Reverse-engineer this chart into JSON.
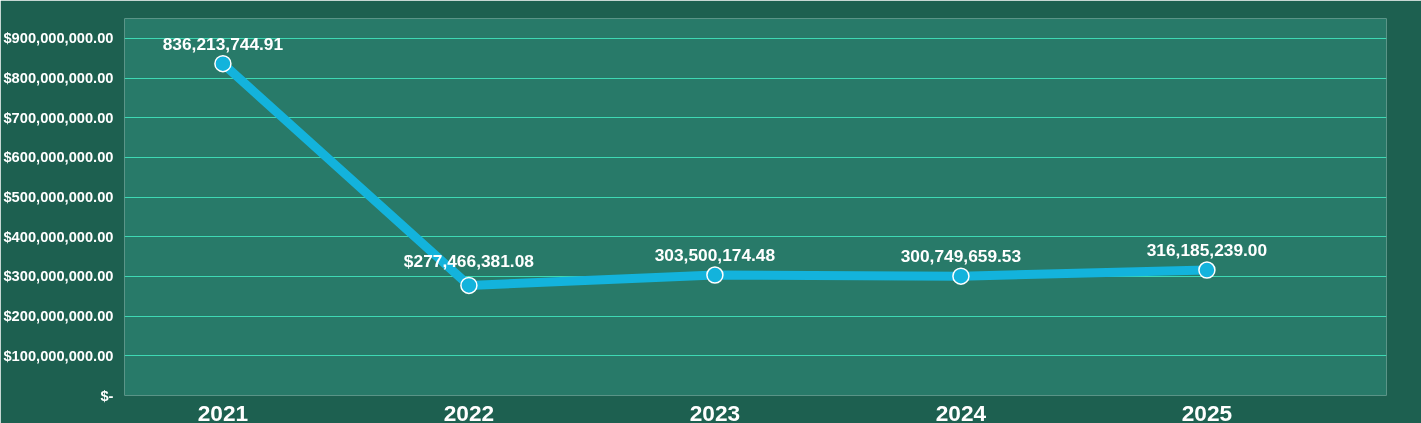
{
  "chart_data": {
    "type": "line",
    "categories": [
      "2021",
      "2022",
      "2023",
      "2024",
      "2025"
    ],
    "series": [
      {
        "color": "#13b3dc",
        "values": [
          836213744.91,
          277466381.08,
          303500174.48,
          300749659.53,
          316185239.0
        ],
        "value_labels": [
          "836,213,744.91",
          "$277,466,381.08",
          "303,500,174.48",
          "300,749,659.53",
          "316,185,239.00"
        ]
      }
    ],
    "ylim": [
      0,
      950000000
    ],
    "yticks": [
      {
        "value": 0,
        "label": "$-"
      },
      {
        "value": 100000000,
        "label": "$100,000,000.00"
      },
      {
        "value": 200000000,
        "label": "$200,000,000.00"
      },
      {
        "value": 300000000,
        "label": "$300,000,000.00"
      },
      {
        "value": 400000000,
        "label": "$400,000,000.00"
      },
      {
        "value": 500000000,
        "label": "$500,000,000.00"
      },
      {
        "value": 600000000,
        "label": "$600,000,000.00"
      },
      {
        "value": 700000000,
        "label": "$700,000,000.00"
      },
      {
        "value": 800000000,
        "label": "$800,000,000.00"
      },
      {
        "value": 900000000,
        "label": "$900,000,000.00"
      }
    ],
    "grid": "y",
    "marker": "circle",
    "line_style": "solid"
  }
}
